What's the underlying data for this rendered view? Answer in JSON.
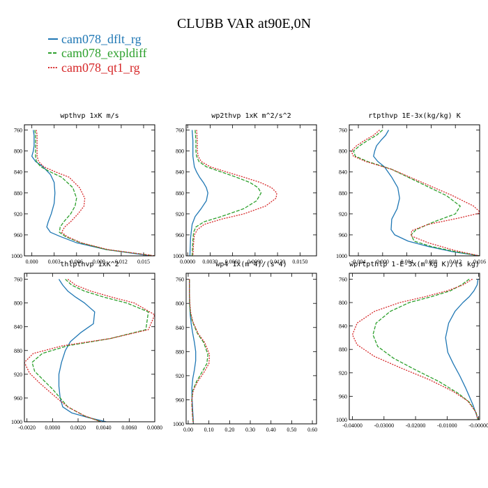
{
  "title": "CLUBB VAR at90E,0N",
  "colors": {
    "cam078_dflt_rg": "#1f77b4",
    "cam078_expldiff": "#2ca02c",
    "cam078_qt1_rg": "#d62728"
  },
  "legend": [
    {
      "name": "cam078_dflt_rg",
      "color": "#1f77b4",
      "dash": "solid"
    },
    {
      "name": "cam078_expldiff",
      "color": "#2ca02c",
      "dash": "dashed"
    },
    {
      "name": "cam078_qt1_rg",
      "color": "#d62728",
      "dash": "dotted"
    }
  ],
  "chart_data": [
    {
      "type": "line",
      "title": "wpthvp  1xK m/s",
      "xlim": [
        -0.001,
        0.0165
      ],
      "ylim": [
        1000,
        750
      ],
      "xticks": [
        "0.000",
        "0.003",
        "0.006",
        "0.009",
        "0.012",
        "0.015"
      ],
      "xtick_values": [
        0.0,
        0.003,
        0.006,
        0.009,
        0.012,
        0.015
      ],
      "yticks": [
        760,
        800,
        840,
        880,
        920,
        960,
        1000
      ],
      "series": [
        {
          "name": "cam078_dflt_rg",
          "x": [
            0.0002,
            0.0003,
            0.0003,
            0.0003,
            0.0002,
            0.0,
            0.0005,
            0.0015,
            0.0025,
            0.003,
            0.0031,
            0.003,
            0.0026,
            0.0022,
            0.002,
            0.0025,
            0.0038,
            0.006,
            0.01,
            0.016
          ],
          "y": [
            760,
            770,
            780,
            790,
            800,
            810,
            820,
            830,
            845,
            860,
            880,
            900,
            920,
            935,
            945,
            955,
            963,
            975,
            988,
            1000
          ]
        },
        {
          "name": "cam078_expldiff",
          "x": [
            0.0004,
            0.0005,
            0.0005,
            0.0005,
            0.0005,
            0.0005,
            0.0006,
            0.0012,
            0.0025,
            0.004,
            0.0055,
            0.006,
            0.0058,
            0.0052,
            0.0043,
            0.0038,
            0.0037,
            0.0045,
            0.0065,
            0.01,
            0.0165
          ],
          "y": [
            760,
            770,
            780,
            790,
            800,
            810,
            820,
            830,
            840,
            850,
            870,
            890,
            905,
            920,
            935,
            945,
            955,
            963,
            975,
            988,
            1000
          ]
        },
        {
          "name": "cam078_qt1_rg",
          "x": [
            0.0006,
            0.0007,
            0.0007,
            0.0007,
            0.0007,
            0.0007,
            0.0009,
            0.0016,
            0.0032,
            0.005,
            0.0064,
            0.0071,
            0.007,
            0.0062,
            0.0052,
            0.0044,
            0.004,
            0.0047,
            0.0066,
            0.0102,
            0.0165
          ],
          "y": [
            760,
            770,
            780,
            790,
            800,
            810,
            820,
            830,
            840,
            850,
            870,
            890,
            905,
            920,
            935,
            945,
            955,
            963,
            975,
            988,
            1000
          ]
        }
      ]
    },
    {
      "type": "line",
      "title": "wp2thvp  1xK m^2/s^2",
      "xlim": [
        -0.0002,
        0.0172
      ],
      "ylim": [
        1000,
        750
      ],
      "xticks": [
        "0.0000",
        "0.0030",
        "0.0060",
        "0.0090",
        "0.0120",
        "0.0150"
      ],
      "xtick_values": [
        0.0,
        0.003,
        0.006,
        0.009,
        0.012,
        0.015
      ],
      "yticks": [
        760,
        800,
        840,
        880,
        920,
        960,
        1000
      ],
      "series": [
        {
          "name": "cam078_dflt_rg",
          "x": [
            0.0006,
            0.0007,
            0.0007,
            0.0007,
            0.0008,
            0.0009,
            0.0012,
            0.0016,
            0.0021,
            0.0025,
            0.0027,
            0.0025,
            0.0018,
            0.001,
            0.0006,
            0.0004,
            0.0003
          ],
          "y": [
            760,
            780,
            800,
            810,
            820,
            830,
            840,
            850,
            860,
            870,
            880,
            895,
            910,
            925,
            940,
            965,
            1000
          ]
        },
        {
          "name": "cam078_expldiff",
          "x": [
            0.001,
            0.0011,
            0.0011,
            0.0012,
            0.0015,
            0.0025,
            0.0045,
            0.0065,
            0.0083,
            0.0094,
            0.0098,
            0.0092,
            0.0075,
            0.0045,
            0.0022,
            0.0011,
            0.0008,
            0.0007,
            0.0006
          ],
          "y": [
            760,
            780,
            800,
            810,
            820,
            830,
            840,
            850,
            860,
            870,
            880,
            895,
            910,
            925,
            935,
            945,
            955,
            970,
            1000
          ]
        },
        {
          "name": "cam078_qt1_rg",
          "x": [
            0.0012,
            0.0013,
            0.0013,
            0.0014,
            0.0018,
            0.003,
            0.0052,
            0.0075,
            0.0097,
            0.0112,
            0.0119,
            0.0118,
            0.0104,
            0.0075,
            0.0045,
            0.0022,
            0.0013,
            0.0009,
            0.0008,
            0.0007
          ],
          "y": [
            760,
            780,
            800,
            810,
            820,
            830,
            840,
            850,
            860,
            870,
            880,
            890,
            905,
            920,
            930,
            940,
            950,
            960,
            975,
            1000
          ]
        }
      ]
    },
    {
      "type": "line",
      "title": "rtpthvp  1E-3x(kg/kg) K",
      "xlim": [
        -0.0055,
        0.016
      ],
      "ylim": [
        1000,
        750
      ],
      "xticks": [
        "-0.004",
        "0.000",
        "0.004",
        "0.008",
        "0.012",
        "0.016"
      ],
      "xtick_values": [
        -0.004,
        0.0,
        0.004,
        0.008,
        0.012,
        0.016
      ],
      "yticks": [
        760,
        800,
        840,
        880,
        920,
        960,
        1000
      ],
      "series": [
        {
          "name": "cam078_dflt_rg",
          "x": [
            0.001,
            0.0005,
            -0.0003,
            -0.001,
            -0.0013,
            -0.0015,
            -0.0008,
            0.0003,
            0.0015,
            0.0025,
            0.0028,
            0.0024,
            0.0015,
            0.0014,
            0.002,
            0.0042,
            0.0075,
            0.0115,
            0.016
          ],
          "y": [
            760,
            770,
            780,
            790,
            800,
            810,
            820,
            830,
            850,
            870,
            890,
            910,
            930,
            950,
            960,
            972,
            982,
            992,
            1000
          ]
        },
        {
          "name": "cam078_expldiff",
          "x": [
            0.0,
            -0.001,
            -0.0025,
            -0.0038,
            -0.0048,
            -0.0045,
            -0.0025,
            0.0015,
            0.006,
            0.0105,
            0.0128,
            0.012,
            0.0085,
            0.0055,
            0.0047,
            0.0052,
            0.008,
            0.012,
            0.016
          ],
          "y": [
            760,
            770,
            780,
            790,
            800,
            810,
            820,
            835,
            860,
            885,
            905,
            920,
            935,
            950,
            960,
            972,
            982,
            992,
            1000
          ]
        },
        {
          "name": "cam078_qt1_rg",
          "x": [
            -0.0005,
            -0.0015,
            -0.003,
            -0.0043,
            -0.0052,
            -0.0048,
            -0.0028,
            0.0015,
            0.0065,
            0.0115,
            0.015,
            0.0162,
            0.0125,
            0.0075,
            0.0048,
            0.0047,
            0.0075,
            0.012,
            0.016
          ],
          "y": [
            760,
            770,
            780,
            790,
            800,
            810,
            820,
            835,
            860,
            885,
            905,
            918,
            928,
            940,
            952,
            962,
            975,
            990,
            1000
          ]
        }
      ]
    },
    {
      "type": "line",
      "title": "thlpthvp  1xK^2",
      "xlim": [
        -0.0022,
        0.008
      ],
      "ylim": [
        1000,
        750
      ],
      "xticks": [
        "-0.0020",
        "0.0000",
        "0.0020",
        "0.0040",
        "0.0060",
        "0.0080"
      ],
      "xtick_values": [
        -0.002,
        0.0,
        0.002,
        0.004,
        0.006,
        0.008
      ],
      "yticks": [
        760,
        800,
        840,
        880,
        920,
        960,
        1000
      ],
      "series": [
        {
          "name": "cam078_dflt_rg",
          "x": [
            0.0005,
            0.0008,
            0.0012,
            0.0018,
            0.0025,
            0.0033,
            0.0032,
            0.0022,
            0.0014,
            0.001,
            0.0007,
            0.0005,
            0.0005,
            0.0006,
            0.0008,
            0.0015,
            0.0028,
            0.0042
          ],
          "y": [
            760,
            770,
            780,
            790,
            800,
            815,
            835,
            850,
            865,
            880,
            900,
            920,
            940,
            960,
            975,
            985,
            993,
            1000
          ]
        },
        {
          "name": "cam078_expldiff",
          "x": [
            0.001,
            0.0015,
            0.0025,
            0.004,
            0.0058,
            0.0075,
            0.0073,
            0.0045,
            0.0012,
            -0.0008,
            -0.0016,
            -0.0014,
            -0.0007,
            0.0,
            0.0006,
            0.0012,
            0.0025,
            0.0038
          ],
          "y": [
            760,
            770,
            780,
            790,
            800,
            815,
            845,
            860,
            872,
            885,
            900,
            915,
            930,
            945,
            960,
            975,
            990,
            1000
          ]
        },
        {
          "name": "cam078_qt1_rg",
          "x": [
            0.0012,
            0.0018,
            0.003,
            0.0046,
            0.0064,
            0.008,
            0.0075,
            0.0045,
            0.0008,
            -0.0015,
            -0.0022,
            -0.0018,
            -0.001,
            -0.0002,
            0.0005,
            0.0012,
            0.0025,
            0.0038
          ],
          "y": [
            760,
            770,
            780,
            790,
            800,
            820,
            845,
            860,
            872,
            885,
            900,
            918,
            935,
            950,
            963,
            975,
            990,
            1000
          ]
        }
      ]
    },
    {
      "type": "line",
      "title": "wp4  1x(m^4)/(s^4)",
      "xlim": [
        -0.01,
        0.62
      ],
      "ylim": [
        1000,
        750
      ],
      "xticks": [
        "0.00",
        "0.10",
        "0.20",
        "0.30",
        "0.40",
        "0.50",
        "0.60"
      ],
      "xtick_values": [
        0.0,
        0.1,
        0.2,
        0.3,
        0.4,
        0.5,
        0.6
      ],
      "yticks": [
        760,
        800,
        840,
        880,
        920,
        960,
        1000
      ],
      "series": [
        {
          "name": "cam078_dflt_rg",
          "x": [
            0.006,
            0.006,
            0.007,
            0.01,
            0.015,
            0.022,
            0.03,
            0.036,
            0.036,
            0.03,
            0.022,
            0.018,
            0.018,
            0.02,
            0.022,
            0.024,
            0.025
          ],
          "y": [
            760,
            780,
            800,
            820,
            835,
            850,
            865,
            880,
            895,
            910,
            925,
            940,
            955,
            965,
            980,
            990,
            1000
          ]
        },
        {
          "name": "cam078_expldiff",
          "x": [
            0.006,
            0.006,
            0.007,
            0.01,
            0.02,
            0.045,
            0.075,
            0.095,
            0.09,
            0.065,
            0.04,
            0.022,
            0.017,
            0.018,
            0.02,
            0.022,
            0.025
          ],
          "y": [
            760,
            780,
            800,
            815,
            830,
            850,
            865,
            885,
            900,
            915,
            930,
            945,
            960,
            970,
            982,
            992,
            1000
          ]
        },
        {
          "name": "cam078_qt1_rg",
          "x": [
            0.006,
            0.006,
            0.008,
            0.012,
            0.022,
            0.048,
            0.08,
            0.103,
            0.1,
            0.075,
            0.045,
            0.024,
            0.018,
            0.018,
            0.02,
            0.022,
            0.025
          ],
          "y": [
            760,
            780,
            800,
            815,
            830,
            850,
            865,
            885,
            900,
            915,
            930,
            945,
            960,
            970,
            982,
            992,
            1000
          ]
        }
      ]
    },
    {
      "type": "line",
      "title": "wprtpthlp  1-E-3x(m kg K)/(s kg)",
      "xlim": [
        -0.041,
        0.0003
      ],
      "ylim": [
        1000,
        750
      ],
      "xticks": [
        "-0.04000",
        "-0.03000",
        "-0.02000",
        "-0.01000",
        "-0.00000"
      ],
      "xtick_values": [
        -0.04,
        -0.03,
        -0.02,
        -0.01,
        0.0
      ],
      "yticks": [
        760,
        800,
        840,
        880,
        920,
        960,
        1000
      ],
      "series": [
        {
          "name": "cam078_dflt_rg",
          "x": [
            -0.0002,
            -0.0005,
            -0.0015,
            -0.003,
            -0.005,
            -0.0075,
            -0.0095,
            -0.0105,
            -0.0098,
            -0.008,
            -0.006,
            -0.0042,
            -0.003,
            -0.0018,
            -0.0008,
            -0.0002
          ],
          "y": [
            760,
            770,
            780,
            790,
            800,
            815,
            835,
            860,
            885,
            905,
            925,
            945,
            960,
            975,
            990,
            1000
          ]
        },
        {
          "name": "cam078_expldiff",
          "x": [
            -0.003,
            -0.0055,
            -0.009,
            -0.015,
            -0.022,
            -0.028,
            -0.0325,
            -0.0335,
            -0.032,
            -0.027,
            -0.02,
            -0.0125,
            -0.0065,
            -0.003,
            -0.0008,
            -0.0002
          ],
          "y": [
            760,
            770,
            780,
            790,
            800,
            815,
            835,
            855,
            875,
            895,
            915,
            935,
            955,
            970,
            988,
            1000
          ]
        },
        {
          "name": "cam078_qt1_rg",
          "x": [
            -0.002,
            -0.005,
            -0.01,
            -0.017,
            -0.025,
            -0.033,
            -0.0385,
            -0.04,
            -0.0385,
            -0.033,
            -0.0245,
            -0.0155,
            -0.008,
            -0.0035,
            -0.001,
            -0.0002
          ],
          "y": [
            760,
            770,
            780,
            790,
            800,
            815,
            835,
            855,
            872,
            892,
            912,
            932,
            952,
            968,
            986,
            1000
          ]
        }
      ]
    }
  ]
}
